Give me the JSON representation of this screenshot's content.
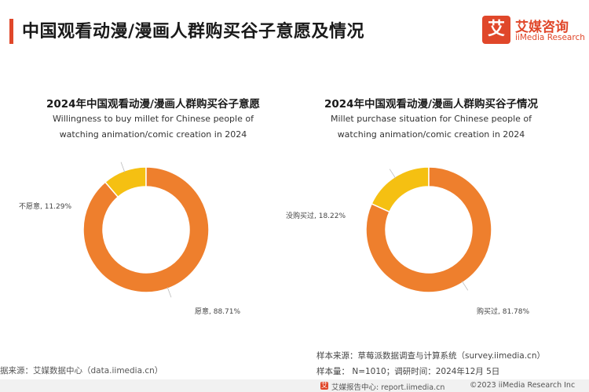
{
  "page": {
    "title": "中国观看动漫/漫画人群购买谷子意愿及情况"
  },
  "logo": {
    "mark": "艾",
    "name_cn": "艾媒咨询",
    "name_en": "iiMedia Research"
  },
  "chart_data": [
    {
      "type": "pie",
      "title": "2024年中国观看动漫/漫画人群购买谷子意愿",
      "subtitle_lines": [
        "Willingness to buy millet for Chinese people of",
        "watching animation/comic creation in 2024"
      ],
      "labels": [
        "愿意",
        "不愿意"
      ],
      "values": [
        88.71,
        11.29
      ],
      "unit": "%",
      "value_labels": [
        "愿意, 88.71%",
        "不愿意, 11.29%"
      ],
      "colors": [
        "#ee7f2d",
        "#f5c012"
      ]
    },
    {
      "type": "pie",
      "title": "2024年中国观看动漫/漫画人群购买谷子情况",
      "subtitle_lines": [
        "Millet purchase situation for Chinese people of",
        "watching animation/comic creation in 2024"
      ],
      "labels": [
        "购买过",
        "没购买过"
      ],
      "values": [
        81.78,
        18.22
      ],
      "unit": "%",
      "value_labels": [
        "购买过, 81.78%",
        "没购买过, 18.22%"
      ],
      "colors": [
        "#ee7f2d",
        "#f5c012"
      ]
    }
  ],
  "footer": {
    "source": "据来源：艾媒数据中心（data.iimedia.cn）",
    "sample_source": "样本来源：草莓派数据调查与计算系统（survey.iimedia.cn）",
    "sample_size": "样本量： N=1010；调研时间：2024年12月 5日",
    "bottom_mark": "艾",
    "bottom_center": "艾媒报告中心: report.iimedia.cn",
    "bottom_right": "©2023  iiMedia Research  Inc"
  }
}
